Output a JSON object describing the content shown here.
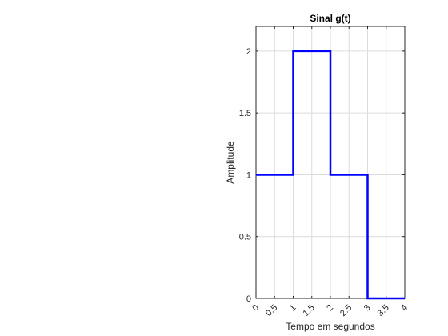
{
  "chart_data": {
    "type": "line",
    "title": "Sinal g(t)",
    "xlabel": "Tempo em segundos",
    "ylabel": "Amplitude",
    "xlim": [
      0,
      4
    ],
    "ylim": [
      0,
      2.2
    ],
    "grid": true,
    "x_ticks": [
      "0",
      "0.5",
      "1",
      "1.5",
      "2",
      "2.5",
      "3",
      "3.5",
      "4"
    ],
    "y_ticks": [
      "0",
      "0.5",
      "1",
      "1.5",
      "2"
    ],
    "series": [
      {
        "color": "#0000ff",
        "step": true,
        "x": [
          0,
          1,
          1,
          2,
          2,
          3,
          3,
          4
        ],
        "y": [
          1,
          1,
          2,
          2,
          1,
          1,
          0,
          0
        ]
      }
    ]
  }
}
